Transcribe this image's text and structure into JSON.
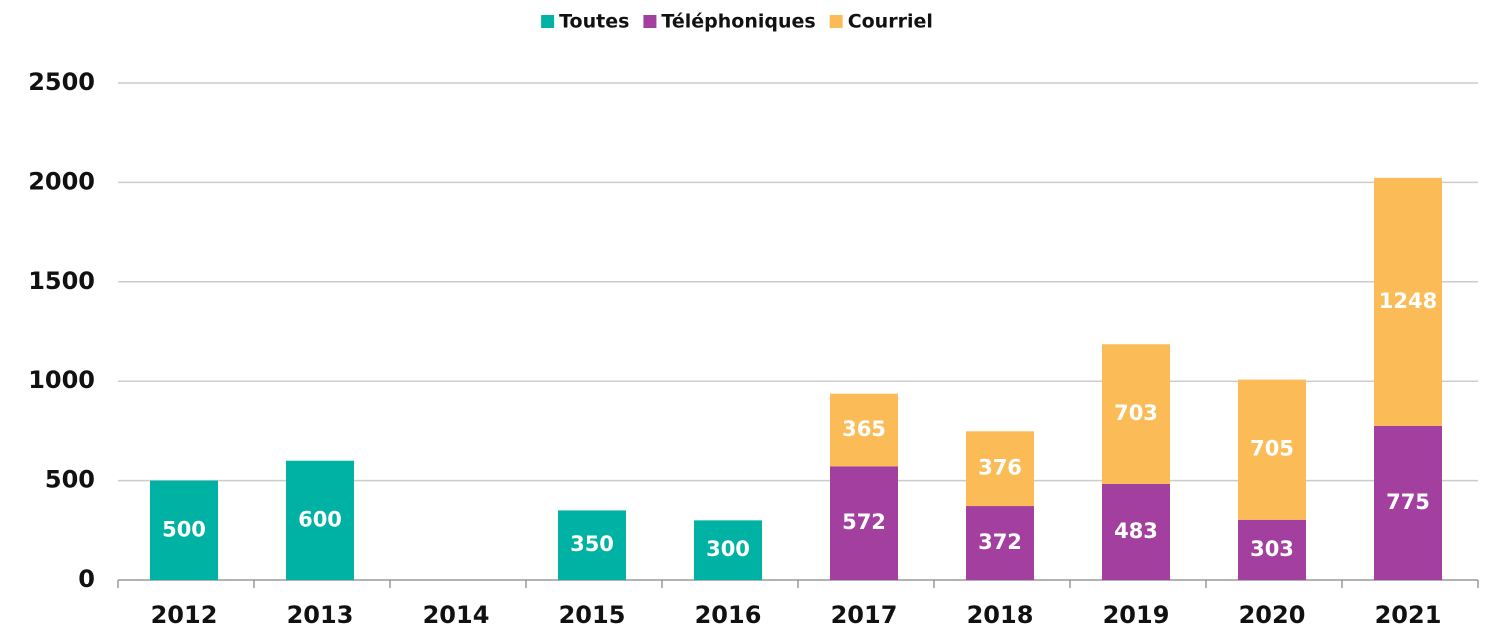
{
  "chart_data": {
    "type": "stacked_bar",
    "categories": [
      "2012",
      "2013",
      "2014",
      "2015",
      "2016",
      "2017",
      "2018",
      "2019",
      "2020",
      "2021"
    ],
    "series": [
      {
        "name": "Toutes",
        "color": "#00b2a3",
        "values": [
          500,
          600,
          null,
          350,
          300,
          null,
          null,
          null,
          null,
          null
        ]
      },
      {
        "name": "Téléphoniques",
        "color": "#a3409f",
        "values": [
          null,
          null,
          null,
          null,
          null,
          572,
          372,
          483,
          303,
          775
        ]
      },
      {
        "name": "Courriel",
        "color": "#fbbc57",
        "values": [
          null,
          null,
          null,
          null,
          null,
          365,
          376,
          703,
          705,
          1248
        ]
      }
    ],
    "ylim": [
      0,
      2500
    ],
    "yticks": [
      0,
      500,
      1000,
      1500,
      2000,
      2500
    ],
    "grid": true,
    "legend": "top"
  }
}
